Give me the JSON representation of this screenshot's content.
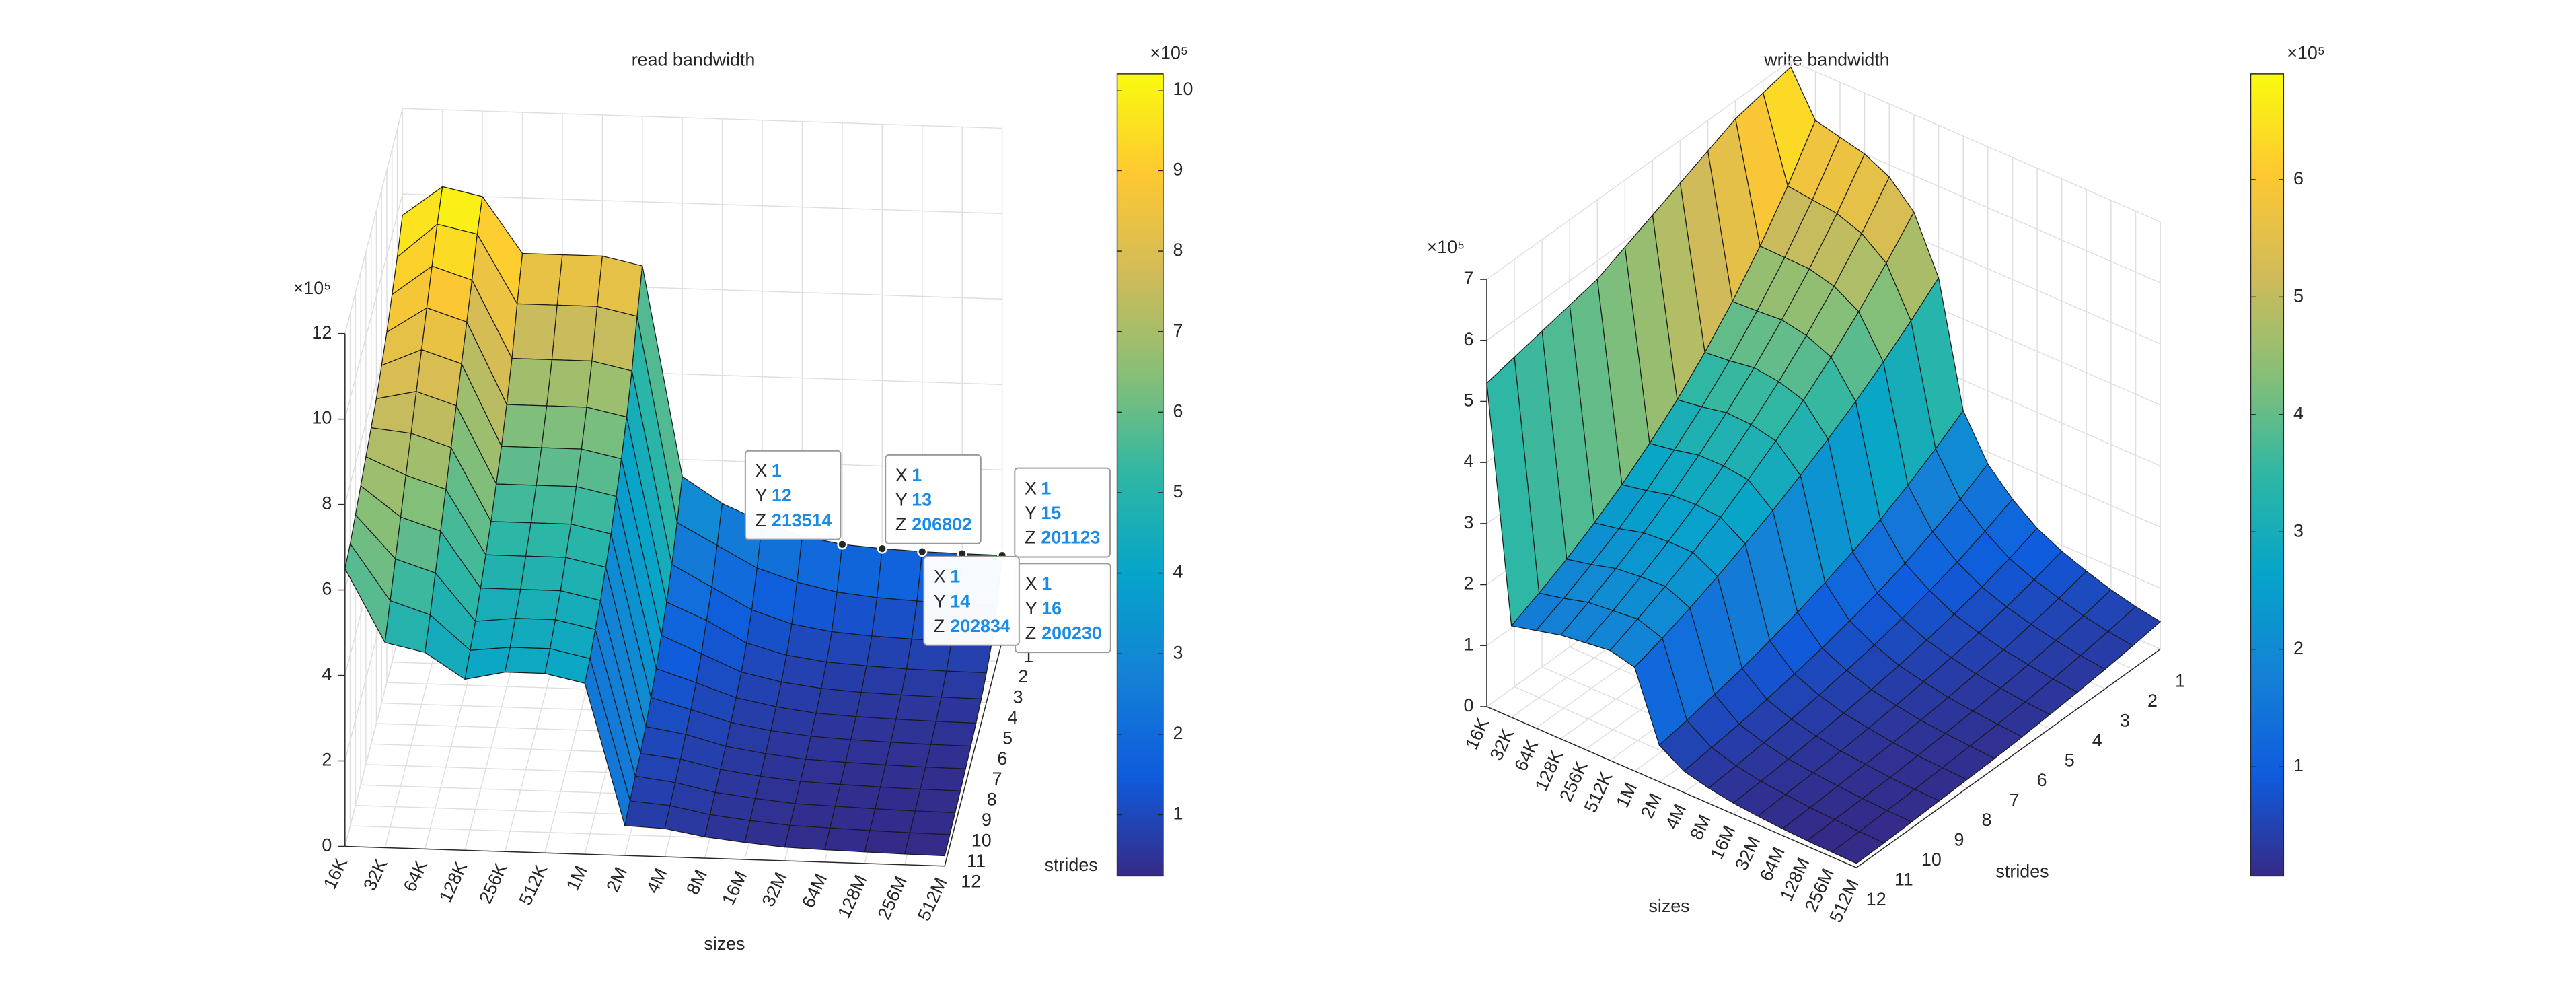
{
  "chart_data": [
    {
      "type": "surface",
      "title": "read bandwidth",
      "xlabel": "sizes",
      "ylabel": "strides",
      "categories": [
        "16K",
        "32K",
        "64K",
        "128K",
        "256K",
        "512K",
        "1M",
        "2M",
        "4M",
        "8M",
        "16M",
        "32M",
        "64M",
        "128M",
        "256M",
        "512M"
      ],
      "strides": [
        1,
        2,
        3,
        4,
        5,
        6,
        7,
        8,
        9,
        10,
        11,
        12
      ],
      "ylim": [
        1,
        12
      ],
      "z": [
        [
          950000,
          1020000,
          1000000,
          870000,
          870000,
          870000,
          850000,
          360000,
          300000,
          260000,
          230000,
          213514,
          206802,
          202834,
          201123,
          200230
        ],
        [
          900000,
          980000,
          960000,
          800000,
          800000,
          800000,
          780000,
          300000,
          250000,
          200000,
          170000,
          150000,
          140000,
          135000,
          132000,
          130000
        ],
        [
          860000,
          930000,
          900000,
          720000,
          720000,
          720000,
          700000,
          250000,
          200000,
          150000,
          120000,
          105000,
          98000,
          94000,
          92000,
          90000
        ],
        [
          820000,
          880000,
          850000,
          660000,
          660000,
          660000,
          640000,
          210000,
          170000,
          120000,
          95000,
          82000,
          76000,
          72000,
          70000,
          69000
        ],
        [
          790000,
          830000,
          800000,
          610000,
          610000,
          610000,
          590000,
          180000,
          140000,
          100000,
          80000,
          68000,
          62000,
          59000,
          57000,
          56000
        ],
        [
          760000,
          780000,
          750000,
          570000,
          570000,
          570000,
          550000,
          150000,
          120000,
          88000,
          70000,
          58000,
          53000,
          50000,
          48000,
          47000
        ],
        [
          740000,
          730000,
          700000,
          530000,
          530000,
          530000,
          510000,
          130000,
          105000,
          78000,
          62000,
          52000,
          47000,
          44000,
          42000,
          41000
        ],
        [
          720000,
          680000,
          650000,
          500000,
          500000,
          500000,
          480000,
          110000,
          95000,
          70000,
          56000,
          46000,
          42000,
          39000,
          37000,
          36000
        ],
        [
          700000,
          630000,
          600000,
          470000,
          470000,
          470000,
          450000,
          95000,
          85000,
          64000,
          51000,
          42000,
          38000,
          35000,
          33000,
          32000
        ],
        [
          680000,
          580000,
          550000,
          440000,
          450000,
          450000,
          430000,
          90000,
          78000,
          58000,
          47000,
          38000,
          35000,
          32000,
          30000,
          29000
        ],
        [
          660000,
          530000,
          500000,
          420000,
          430000,
          430000,
          410000,
          80000,
          72000,
          54000,
          43000,
          35000,
          32000,
          29000,
          27000,
          26000
        ],
        [
          650000,
          480000,
          460000,
          400000,
          420000,
          420000,
          400000,
          70000,
          66000,
          50000,
          40000,
          32000,
          29000,
          27000,
          25000,
          24000
        ]
      ],
      "zlim": [
        0,
        1200000
      ],
      "zticks": [
        0,
        {
          "value": 200000,
          "label": "2"
        },
        {
          "value": 400000,
          "label": "4"
        },
        {
          "value": 600000,
          "label": "6"
        },
        {
          "value": 800000,
          "label": "8"
        },
        {
          "value": 1000000,
          "label": "10"
        },
        {
          "value": 1200000,
          "label": "12"
        }
      ],
      "exponent_label": "×10⁵",
      "colormap": "parula",
      "colorbar": {
        "exponent_label": "×10⁵",
        "ticks": [
          {
            "value": 100000,
            "label": "1"
          },
          {
            "value": 200000,
            "label": "2"
          },
          {
            "value": 300000,
            "label": "3"
          },
          {
            "value": 400000,
            "label": "4"
          },
          {
            "value": 500000,
            "label": "5"
          },
          {
            "value": 600000,
            "label": "6"
          },
          {
            "value": 700000,
            "label": "7"
          },
          {
            "value": 800000,
            "label": "8"
          },
          {
            "value": 900000,
            "label": "9"
          },
          {
            "value": 1000000,
            "label": "10"
          }
        ]
      },
      "datatip_labels": [
        "X",
        "Y",
        "Z"
      ],
      "datatips": [
        {
          "x": 1,
          "y": 12
        },
        {
          "x": 1,
          "y": 13
        },
        {
          "x": 1,
          "y": 15
        },
        {
          "x": 1,
          "y": 14
        },
        {
          "x": 1,
          "y": 16
        }
      ]
    },
    {
      "type": "surface",
      "title": "write bandwidth",
      "xlabel": "sizes",
      "ylabel": "strides",
      "categories": [
        "16K",
        "32K",
        "64K",
        "128K",
        "256K",
        "512K",
        "1M",
        "2M",
        "4M",
        "8M",
        "16M",
        "32M",
        "64M",
        "128M",
        "256M",
        "512M"
      ],
      "strides": [
        1,
        2,
        3,
        4,
        5,
        6,
        7,
        8,
        9,
        10,
        11,
        12
      ],
      "ylim": [
        1,
        12
      ],
      "z": [
        [
          690000,
          620000,
          610000,
          600000,
          580000,
          540000,
          450000,
          250000,
          180000,
          140000,
          110000,
          90000,
          75000,
          62000,
          52000,
          45000
        ],
        [
          680000,
          545000,
          540000,
          535000,
          520000,
          489000,
          412000,
          220000,
          155000,
          120000,
          93000,
          76000,
          63000,
          52000,
          44000,
          38000
        ],
        [
          670000,
          479000,
          478000,
          477000,
          466000,
          442000,
          377000,
          193000,
          134000,
          102000,
          79000,
          64000,
          53000,
          44000,
          37000,
          32000
        ],
        [
          650000,
          421000,
          423000,
          426000,
          418000,
          400000,
          345000,
          169000,
          115000,
          88000,
          67000,
          54000,
          44000,
          37000,
          31000,
          27000
        ],
        [
          630000,
          370000,
          374000,
          380000,
          375000,
          362000,
          316000,
          149000,
          99000,
          75000,
          57000,
          46000,
          37000,
          31000,
          26000,
          23000
        ],
        [
          610000,
          325000,
          331000,
          339000,
          337000,
          328000,
          289000,
          131000,
          86000,
          64000,
          48000,
          39000,
          31000,
          26000,
          22000,
          19000
        ],
        [
          590000,
          286000,
          293000,
          302000,
          302000,
          297000,
          264000,
          115000,
          74000,
          55000,
          41000,
          33000,
          26000,
          22000,
          19000,
          16000
        ],
        [
          570000,
          251000,
          259000,
          269000,
          271000,
          268000,
          242000,
          101000,
          64000,
          47000,
          35000,
          28000,
          22000,
          18000,
          16000,
          14000
        ],
        [
          560000,
          221000,
          229000,
          240000,
          243000,
          243000,
          221000,
          88000,
          55000,
          40000,
          30000,
          23000,
          19000,
          15000,
          13000,
          12000
        ],
        [
          550000,
          194000,
          203000,
          214000,
          218000,
          220000,
          202000,
          78000,
          47000,
          34000,
          25000,
          20000,
          16000,
          13000,
          11000,
          10000
        ],
        [
          540000,
          171000,
          180000,
          191000,
          195000,
          199000,
          185000,
          68000,
          41000,
          29000,
          21000,
          17000,
          13000,
          11000,
          9000,
          8000
        ],
        [
          530000,
          150000,
          160000,
          170000,
          175000,
          180000,
          170000,
          60000,
          35000,
          25000,
          18000,
          14000,
          11000,
          9000,
          8000,
          7000
        ]
      ],
      "zlim": [
        0,
        700000
      ],
      "zticks": [
        0,
        {
          "value": 100000,
          "label": "1"
        },
        {
          "value": 200000,
          "label": "2"
        },
        {
          "value": 300000,
          "label": "3"
        },
        {
          "value": 400000,
          "label": "4"
        },
        {
          "value": 500000,
          "label": "5"
        },
        {
          "value": 600000,
          "label": "6"
        },
        {
          "value": 700000,
          "label": "7"
        }
      ],
      "exponent_label": "×10⁵",
      "colormap": "parula",
      "colorbar": {
        "exponent_label": "×10⁵",
        "ticks": [
          {
            "value": 100000,
            "label": "1"
          },
          {
            "value": 200000,
            "label": "2"
          },
          {
            "value": 300000,
            "label": "3"
          },
          {
            "value": 400000,
            "label": "4"
          },
          {
            "value": 500000,
            "label": "5"
          },
          {
            "value": 600000,
            "label": "6"
          }
        ]
      }
    }
  ]
}
